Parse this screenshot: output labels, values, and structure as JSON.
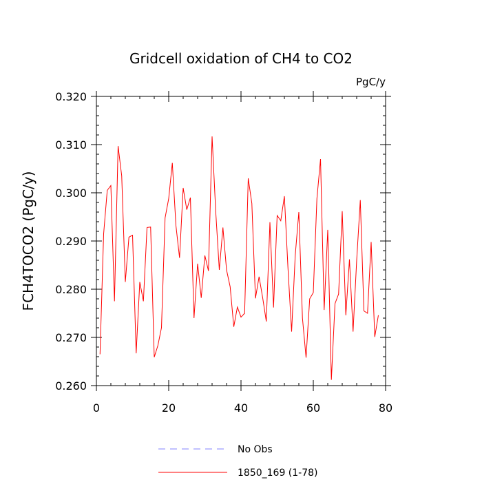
{
  "chart_data": {
    "type": "line",
    "title": "Gridcell oxidation of CH4 to CO2",
    "units": "PgC/y",
    "xlabel": "",
    "ylabel": "FCH4TOCO2  (PgC/y)",
    "xlim": [
      0,
      80
    ],
    "ylim": [
      0.26,
      0.32
    ],
    "x_ticks": [
      0,
      20,
      40,
      60,
      80
    ],
    "x_tick_labels": [
      "0",
      "20",
      "40",
      "60",
      "80"
    ],
    "y_ticks": [
      0.26,
      0.27,
      0.28,
      0.29,
      0.3,
      0.31,
      0.32
    ],
    "y_tick_labels": [
      "0.260",
      "0.270",
      "0.280",
      "0.290",
      "0.300",
      "0.310",
      "0.320"
    ],
    "grid": false,
    "legend": [
      {
        "label": "No Obs",
        "color": "#8080ff",
        "style": "dashed"
      },
      {
        "label": "1850_169 (1-78)",
        "color": "#ff0000",
        "style": "solid"
      }
    ],
    "series": [
      {
        "name": "1850_169 (1-78)",
        "color": "#ff0000",
        "x": [
          1,
          2,
          3,
          4,
          5,
          6,
          7,
          8,
          9,
          10,
          11,
          12,
          13,
          14,
          15,
          16,
          17,
          18,
          19,
          20,
          21,
          22,
          23,
          24,
          25,
          26,
          27,
          28,
          29,
          30,
          31,
          32,
          33,
          34,
          35,
          36,
          37,
          38,
          39,
          40,
          41,
          42,
          43,
          44,
          45,
          46,
          47,
          48,
          49,
          50,
          51,
          52,
          53,
          54,
          55,
          56,
          57,
          58,
          59,
          60,
          61,
          62,
          63,
          64,
          65,
          66,
          67,
          68,
          69,
          70,
          71,
          72,
          73,
          74,
          75,
          76,
          77,
          78
        ],
        "values": [
          0.2665,
          0.2915,
          0.3005,
          0.3015,
          0.2775,
          0.3097,
          0.3035,
          0.2815,
          0.2908,
          0.2912,
          0.2667,
          0.2815,
          0.2775,
          0.2928,
          0.2929,
          0.2659,
          0.2683,
          0.272,
          0.2948,
          0.2988,
          0.3062,
          0.2932,
          0.2865,
          0.301,
          0.2965,
          0.299,
          0.274,
          0.2853,
          0.2782,
          0.287,
          0.2838,
          0.3117,
          0.2962,
          0.284,
          0.2928,
          0.284,
          0.2805,
          0.2722,
          0.2763,
          0.2742,
          0.275,
          0.303,
          0.2978,
          0.2781,
          0.2826,
          0.2782,
          0.2733,
          0.2939,
          0.2762,
          0.2953,
          0.2942,
          0.2993,
          0.2843,
          0.2712,
          0.287,
          0.296,
          0.274,
          0.2658,
          0.278,
          0.2793,
          0.2988,
          0.307,
          0.2757,
          0.2923,
          0.2612,
          0.277,
          0.279,
          0.2962,
          0.2746,
          0.2862,
          0.2712,
          0.286,
          0.2985,
          0.2755,
          0.275,
          0.2898,
          0.2701,
          0.2746
        ]
      }
    ]
  }
}
